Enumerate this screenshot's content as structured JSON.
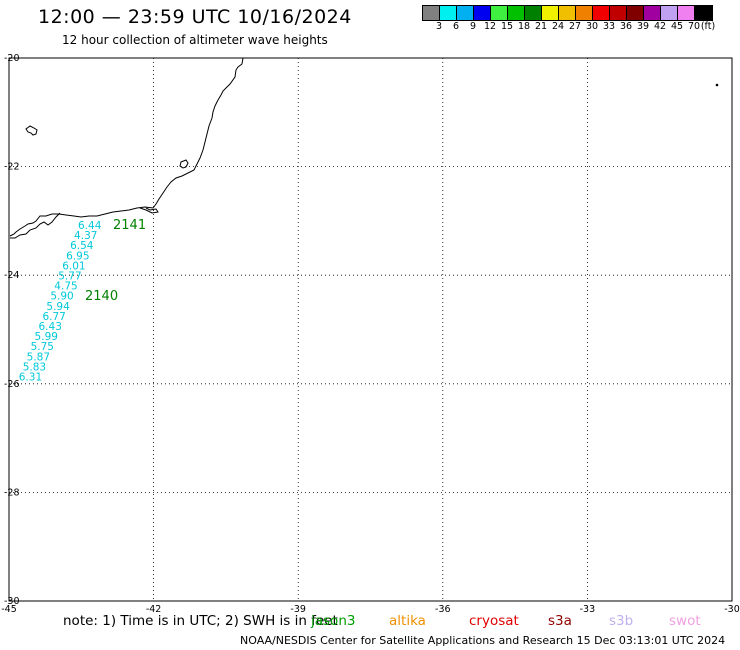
{
  "title": "12:00 — 23:59 UTC 10/16/2024",
  "subtitle": "12 hour collection of altimeter wave heights",
  "colorbar": {
    "colors": [
      "#808080",
      "#00f0f0",
      "#00b0f0",
      "#0000f0",
      "#40f040",
      "#00c000",
      "#008000",
      "#f0f000",
      "#f0c000",
      "#f08000",
      "#f00000",
      "#c00000",
      "#800000",
      "#a000a0",
      "#c0a0f0",
      "#f080f0",
      "#000000"
    ],
    "labels": [
      "3",
      "6",
      "9",
      "12",
      "15",
      "18",
      "21",
      "24",
      "27",
      "30",
      "33",
      "36",
      "39",
      "42",
      "45",
      "70"
    ],
    "unit": "(ft)"
  },
  "axes": {
    "lon_ticks": [
      "-45",
      "-42",
      "-39",
      "-36",
      "-33",
      "-30"
    ],
    "lat_ticks": [
      "-20",
      "-22",
      "-24",
      "-26",
      "-28",
      "-30"
    ]
  },
  "tracks": [
    {
      "id": "2141",
      "color": "#008000"
    },
    {
      "id": "2140",
      "color": "#008000"
    }
  ],
  "wave_heights": [
    "6.44",
    "4.37",
    "6.54",
    "6.95",
    "6.01",
    "5.77",
    "4.75",
    "5.90",
    "5.94",
    "6.77",
    "6.43",
    "5.99",
    "5.75",
    "5.87",
    "5.83",
    "6.31"
  ],
  "wave_color": "#00c8d8",
  "note": "note:  1) Time is in UTC;  2) SWH is in feet",
  "satellites": [
    {
      "name": "jason3",
      "color": "#00a000"
    },
    {
      "name": "altika",
      "color": "#f09000"
    },
    {
      "name": "cryosat",
      "color": "#e00000"
    },
    {
      "name": "s3a",
      "color": "#900000"
    },
    {
      "name": "s3b",
      "color": "#c0b0f0"
    },
    {
      "name": "swot",
      "color": "#f0a0e0"
    }
  ],
  "credit": "NOAA/NESDIS Center for Satellite Applications and Research    15 Dec 03:13:01 UTC 2024"
}
